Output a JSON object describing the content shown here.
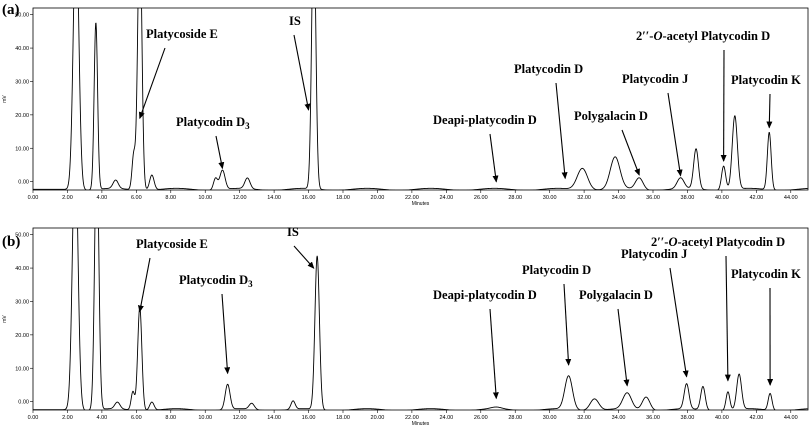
{
  "chart_data": [
    {
      "type": "line",
      "panel_label": "(a)",
      "ylabel": "mV",
      "xlabel": "Minutes",
      "xlim": [
        0,
        45
      ],
      "ylim": [
        -2.5,
        52
      ],
      "x_ticks": [
        "0.00",
        "2.00",
        "4.00",
        "6.00",
        "8.00",
        "10.00",
        "12.00",
        "14.00",
        "16.00",
        "18.00",
        "20.00",
        "22.00",
        "24.00",
        "26.00",
        "28.00",
        "30.00",
        "32.00",
        "34.00",
        "36.00",
        "38.00",
        "40.00",
        "42.00",
        "44.00"
      ],
      "y_ticks": [
        "0.00",
        "10.00",
        "20.00",
        "30.00",
        "40.00",
        "50.00"
      ],
      "baseline": -2.3,
      "peaks": [
        {
          "x": 2.5,
          "y": 80,
          "w": 0.16
        },
        {
          "x": 3.65,
          "y": 50,
          "w": 0.1
        },
        {
          "x": 4.8,
          "y": 2.5,
          "w": 0.15
        },
        {
          "x": 5.85,
          "y": 10.5,
          "w": 0.1
        },
        {
          "x": 6.2,
          "y": 80,
          "w": 0.12
        },
        {
          "x": 6.9,
          "y": 4.5,
          "w": 0.13
        },
        {
          "x": 10.6,
          "y": 3.5,
          "w": 0.12
        },
        {
          "x": 11.0,
          "y": 5.8,
          "w": 0.15
        },
        {
          "x": 12.45,
          "y": 3.2,
          "w": 0.15
        },
        {
          "x": 16.3,
          "y": 80,
          "w": 0.12
        },
        {
          "x": 31.9,
          "y": 6.5,
          "w": 0.3
        },
        {
          "x": 33.8,
          "y": 9.5,
          "w": 0.28
        },
        {
          "x": 35.2,
          "y": 3.5,
          "w": 0.22
        },
        {
          "x": 37.6,
          "y": 3.2,
          "w": 0.2
        },
        {
          "x": 38.5,
          "y": 12.0,
          "w": 0.14
        },
        {
          "x": 40.1,
          "y": 7.2,
          "w": 0.12
        },
        {
          "x": 40.75,
          "y": 22.0,
          "w": 0.15
        },
        {
          "x": 42.75,
          "y": 17.2,
          "w": 0.11
        }
      ],
      "annotations": [
        {
          "text": "Platycoside E",
          "x": 6.2,
          "y": 19
        },
        {
          "text": "Platycodin D",
          "sub": "3",
          "x": 11.0,
          "y": 4
        },
        {
          "text": "IS",
          "x": 16.0,
          "y": 21.5
        },
        {
          "text": "Deapi-platycodin D",
          "x": 26.9,
          "y": 0
        },
        {
          "text": "Platycodin D",
          "x": 30.9,
          "y": 1
        },
        {
          "text": "Polygalacin D",
          "x": 35.2,
          "y": 2
        },
        {
          "text": "Platycodin J",
          "x": 37.6,
          "y": 1.8
        },
        {
          "text": "2′′-O-acetyl Platycodin D",
          "x": 40.1,
          "y": 6.2
        },
        {
          "text": "Platycodin K",
          "x": 42.75,
          "y": 16.2
        }
      ]
    },
    {
      "type": "line",
      "panel_label": "(b)",
      "ylabel": "mV",
      "xlabel": "Minutes",
      "xlim": [
        0,
        45
      ],
      "ylim": [
        -2.5,
        52
      ],
      "x_ticks": [
        "0.00",
        "2.00",
        "4.00",
        "6.00",
        "8.00",
        "10.00",
        "12.00",
        "14.00",
        "16.00",
        "18.00",
        "20.00",
        "22.00",
        "24.00",
        "26.00",
        "28.00",
        "30.00",
        "32.00",
        "34.00",
        "36.00",
        "38.00",
        "40.00",
        "42.00",
        "44.00"
      ],
      "y_ticks": [
        "0.00",
        "10.00",
        "20.00",
        "30.00",
        "40.00",
        "50.00"
      ],
      "baseline": -2.4,
      "peaks": [
        {
          "x": 2.45,
          "y": 80,
          "w": 0.16
        },
        {
          "x": 3.7,
          "y": 80,
          "w": 0.12
        },
        {
          "x": 4.9,
          "y": 2.0,
          "w": 0.15
        },
        {
          "x": 5.8,
          "y": 5.5,
          "w": 0.1
        },
        {
          "x": 6.2,
          "y": 31.0,
          "w": 0.12
        },
        {
          "x": 6.9,
          "y": 2.5,
          "w": 0.13
        },
        {
          "x": 11.3,
          "y": 7.5,
          "w": 0.14
        },
        {
          "x": 12.7,
          "y": 1.8,
          "w": 0.15
        },
        {
          "x": 15.1,
          "y": 2.5,
          "w": 0.12
        },
        {
          "x": 16.5,
          "y": 46.0,
          "w": 0.13
        },
        {
          "x": 26.9,
          "y": 0.5,
          "w": 0.3
        },
        {
          "x": 31.1,
          "y": 10.0,
          "w": 0.22
        },
        {
          "x": 32.6,
          "y": 3.5,
          "w": 0.25
        },
        {
          "x": 34.5,
          "y": 4.8,
          "w": 0.25
        },
        {
          "x": 35.6,
          "y": 4.0,
          "w": 0.22
        },
        {
          "x": 37.95,
          "y": 7.5,
          "w": 0.14
        },
        {
          "x": 38.9,
          "y": 7.0,
          "w": 0.13
        },
        {
          "x": 40.35,
          "y": 5.5,
          "w": 0.11
        },
        {
          "x": 41.0,
          "y": 10.5,
          "w": 0.14
        },
        {
          "x": 42.8,
          "y": 5.0,
          "w": 0.11
        }
      ],
      "annotations": [
        {
          "text": "Platycoside E",
          "x": 6.2,
          "y": 27
        },
        {
          "text": "Platycodin D",
          "sub": "3",
          "x": 11.3,
          "y": 8.5
        },
        {
          "text": "IS",
          "x": 16.3,
          "y": 40
        },
        {
          "text": "Deapi-platycodin D",
          "x": 26.9,
          "y": 1
        },
        {
          "text": "Platycodin D",
          "x": 31.1,
          "y": 11
        },
        {
          "text": "Polygalacin D",
          "x": 34.5,
          "y": 4.8
        },
        {
          "text": "Platycodin J",
          "x": 37.95,
          "y": 7.5
        },
        {
          "text": "2′′-O-acetyl Platycodin D",
          "x": 40.35,
          "y": 6.3
        },
        {
          "text": "Platycodin K",
          "x": 42.8,
          "y": 5.0
        }
      ]
    }
  ]
}
